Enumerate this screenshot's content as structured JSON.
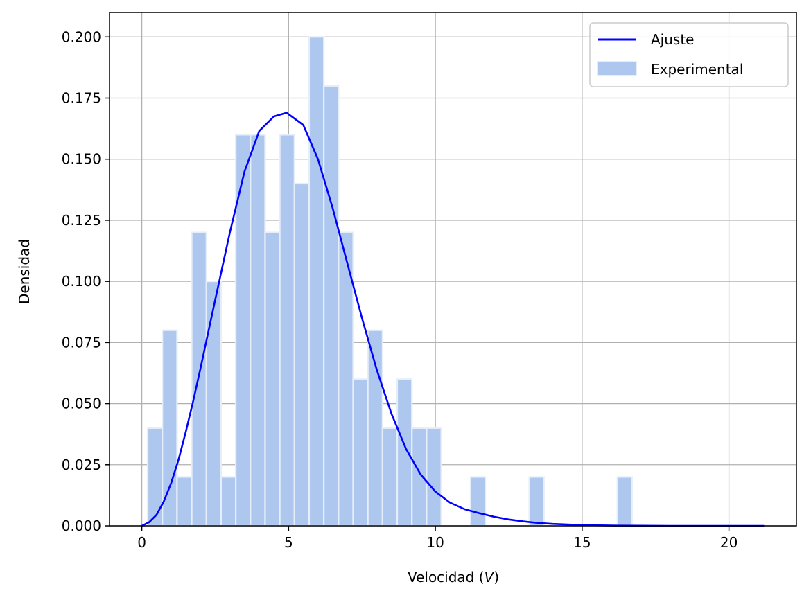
{
  "chart_data": {
    "type": "bar",
    "xlabel_prefix": "Velocidad (",
    "xlabel_var": "V",
    "xlabel_suffix": ")",
    "ylabel": "Densidad",
    "xlim": [
      -1.1,
      22.3
    ],
    "ylim": [
      0,
      0.21
    ],
    "grid": true,
    "legend_position": "top-right",
    "x_ticks": [
      0,
      5,
      10,
      15,
      20
    ],
    "y_ticks": [
      0.0,
      0.025,
      0.05,
      0.075,
      0.1,
      0.125,
      0.15,
      0.175,
      0.2
    ],
    "series": [
      {
        "name": "Ajuste",
        "kind": "line",
        "color": "#0000ff",
        "x": [
          0,
          0.25,
          0.5,
          0.75,
          1,
          1.25,
          1.5,
          1.75,
          2,
          2.5,
          3,
          3.5,
          4,
          4.5,
          4.93,
          5.5,
          6,
          6.5,
          7,
          7.5,
          8,
          8.5,
          9,
          9.5,
          10,
          10.5,
          11,
          11.5,
          12,
          12.5,
          13,
          13.5,
          14,
          15,
          16,
          17,
          18,
          19,
          20,
          21.2
        ],
        "y": [
          0.0,
          0.0015,
          0.0045,
          0.01,
          0.0175,
          0.027,
          0.0385,
          0.051,
          0.0645,
          0.0925,
          0.12,
          0.145,
          0.1615,
          0.1675,
          0.169,
          0.164,
          0.15,
          0.13,
          0.1075,
          0.085,
          0.064,
          0.046,
          0.0315,
          0.021,
          0.014,
          0.0095,
          0.0068,
          0.0052,
          0.0037,
          0.0026,
          0.0018,
          0.0012,
          0.0008,
          0.0003,
          0.0001,
          5e-05,
          0.0,
          0.0,
          0.0,
          0.0
        ]
      },
      {
        "name": "Experimental",
        "kind": "histogram",
        "color": "#aec7ef",
        "edgecolor": "#e6eef9",
        "bin_width": 0.5,
        "bins": [
          {
            "x0": 0.2,
            "value": 0.04
          },
          {
            "x0": 0.7,
            "value": 0.08
          },
          {
            "x0": 1.2,
            "value": 0.02
          },
          {
            "x0": 1.7,
            "value": 0.12
          },
          {
            "x0": 2.2,
            "value": 0.1
          },
          {
            "x0": 2.7,
            "value": 0.02
          },
          {
            "x0": 3.2,
            "value": 0.16
          },
          {
            "x0": 3.7,
            "value": 0.16
          },
          {
            "x0": 4.2,
            "value": 0.12
          },
          {
            "x0": 4.7,
            "value": 0.16
          },
          {
            "x0": 5.2,
            "value": 0.14
          },
          {
            "x0": 5.7,
            "value": 0.2
          },
          {
            "x0": 6.2,
            "value": 0.18
          },
          {
            "x0": 6.7,
            "value": 0.12
          },
          {
            "x0": 7.2,
            "value": 0.06
          },
          {
            "x0": 7.7,
            "value": 0.08
          },
          {
            "x0": 8.2,
            "value": 0.04
          },
          {
            "x0": 8.7,
            "value": 0.06
          },
          {
            "x0": 9.2,
            "value": 0.04
          },
          {
            "x0": 9.7,
            "value": 0.04
          },
          {
            "x0": 11.2,
            "value": 0.02
          },
          {
            "x0": 13.2,
            "value": 0.02
          },
          {
            "x0": 16.2,
            "value": 0.02
          }
        ]
      }
    ]
  }
}
